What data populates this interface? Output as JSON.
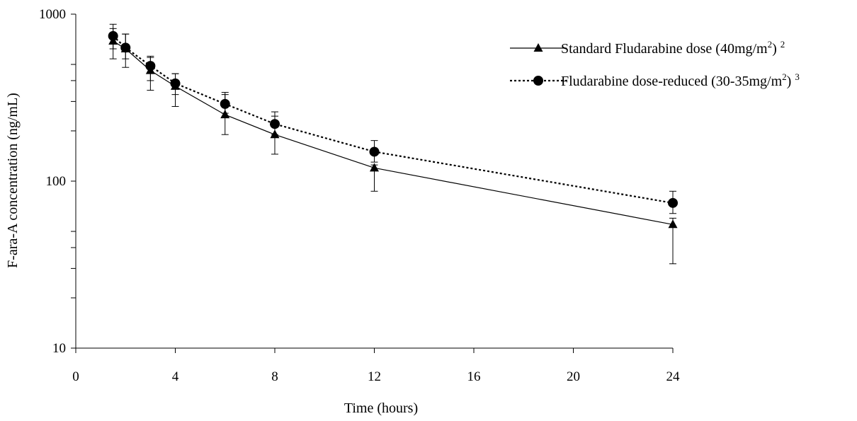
{
  "chart_data": {
    "type": "line",
    "title": "",
    "xlabel": "Time (hours)",
    "ylabel": "F-ara-A concentration (ng/mL)",
    "y_scale": "log",
    "xlim": [
      0,
      24
    ],
    "ylim": [
      10,
      1000
    ],
    "x_ticks": [
      0,
      4,
      8,
      12,
      16,
      20,
      24
    ],
    "x_tick_labels": [
      "0",
      "4",
      "8",
      "12",
      "16",
      "20",
      "24"
    ],
    "y_tick_labels": [
      {
        "value": 10,
        "label": "10"
      },
      {
        "value": 100,
        "label": "100"
      },
      {
        "value": 1000,
        "label": "1000"
      }
    ],
    "y_minor_ticks": [
      20,
      30,
      40,
      50,
      200,
      300,
      400,
      500
    ],
    "grid": false,
    "legend_position": "top-right",
    "series": [
      {
        "name_text": "Standard Fludarabine dose (40mg/m",
        "name_sup": "2",
        "name_tail": ")",
        "name_ref": "2",
        "marker": "triangle",
        "line_style": "solid",
        "color": "#000000",
        "x": [
          1.5,
          2,
          3,
          4,
          6,
          8,
          12,
          24
        ],
        "y": [
          690,
          620,
          460,
          370,
          250,
          190,
          120,
          55
        ],
        "error_low": [
          540,
          480,
          350,
          280,
          190,
          145,
          87,
          32
        ],
        "error_high": [
          820,
          760,
          560,
          440,
          330,
          245,
          125,
          60
        ]
      },
      {
        "name_text": "Fludarabine dose-reduced (30-35mg/m",
        "name_sup": "2",
        "name_tail": ")",
        "name_ref": "3",
        "marker": "circle",
        "line_style": "dotted",
        "color": "#000000",
        "x": [
          1.5,
          2,
          3,
          4,
          6,
          8,
          12,
          24
        ],
        "y": [
          740,
          630,
          490,
          385,
          290,
          220,
          150,
          74
        ],
        "error_low": [
          620,
          540,
          400,
          330,
          255,
          190,
          130,
          64
        ],
        "error_high": [
          870,
          760,
          550,
          440,
          340,
          260,
          175,
          87
        ]
      }
    ]
  }
}
